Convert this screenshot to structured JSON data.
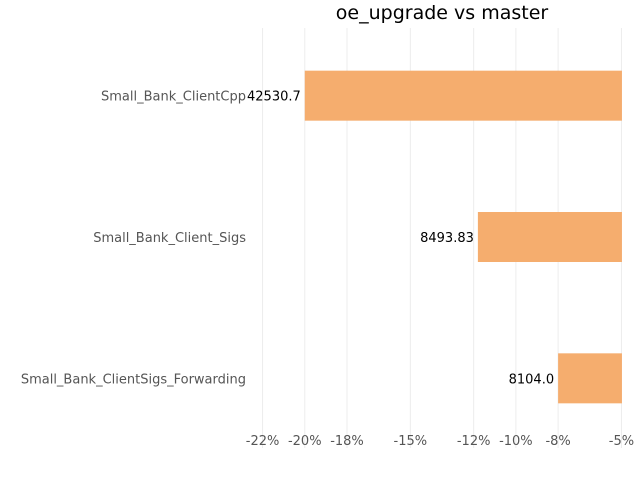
{
  "chart_data": {
    "type": "bar",
    "orientation": "horizontal",
    "title": "oe_upgrade vs master",
    "xlabel": "",
    "ylabel": "",
    "categories": [
      "Small_Bank_ClientCpp",
      "Small_Bank_Client_Sigs",
      "Small_Bank_ClientSigs_Forwarding"
    ],
    "values": [
      -20.0,
      -11.8,
      -8.0
    ],
    "data_labels": [
      "42530.7",
      "8493.83",
      "8104.0"
    ],
    "xlim": [
      -22.5,
      -4.5
    ],
    "xticks": [
      -22,
      -20,
      -18,
      -15,
      -12,
      -10,
      -8,
      -5
    ],
    "xtick_labels": [
      "-22%",
      "-20%",
      "-18%",
      "-15%",
      "-12%",
      "-10%",
      "-8%",
      "-5%"
    ],
    "grid": true,
    "bar_color": "#f5ad6e"
  }
}
